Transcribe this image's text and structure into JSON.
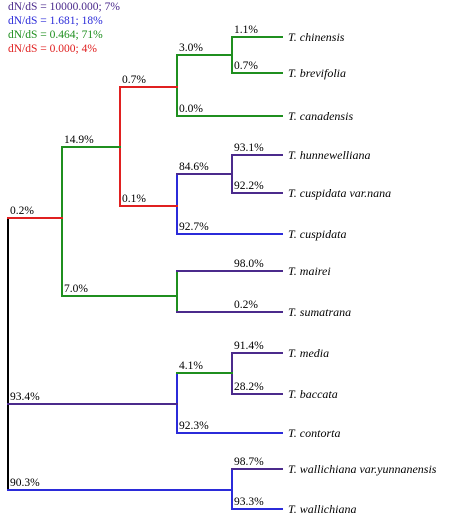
{
  "legend": [
    {
      "text": "dN/dS = 10000.000;   7%",
      "color": "#4b2a8c"
    },
    {
      "text": "dN/dS = 1.681;  18%",
      "color": "#2b2bd9"
    },
    {
      "text": "dN/dS = 0.464;  71%",
      "color": "#1f8f1f"
    },
    {
      "text": "dN/dS = 0.000;   4%",
      "color": "#e02020"
    }
  ],
  "colors": {
    "purple": "#4b2a8c",
    "blue": "#2b2bd9",
    "green": "#1f8f1f",
    "red": "#e02020",
    "black": "#000000"
  },
  "taxa": [
    {
      "id": "chinensis",
      "name": "T. chinensis"
    },
    {
      "id": "brevifolia",
      "name": "T. brevifolia"
    },
    {
      "id": "canadensis",
      "name": "T. canadensis"
    },
    {
      "id": "hunnewelliana",
      "name": "T. hunnewelliana"
    },
    {
      "id": "cuspidata_nana",
      "name": "T. cuspidata var.nana"
    },
    {
      "id": "cuspidata",
      "name": "T. cuspidata"
    },
    {
      "id": "mairei",
      "name": "T. mairei"
    },
    {
      "id": "sumatrana",
      "name": "T. sumatrana"
    },
    {
      "id": "media",
      "name": "T. media"
    },
    {
      "id": "baccata",
      "name": "T. baccata"
    },
    {
      "id": "contorta",
      "name": "T. contorta"
    },
    {
      "id": "wallichiana_yunnanensis",
      "name": "T. wallichiana var.yunnanensis"
    },
    {
      "id": "wallichiana",
      "name": "T. wallichiana"
    }
  ],
  "branch_labels": [
    {
      "id": "root_upper",
      "text": "0.2%"
    },
    {
      "id": "root_mid",
      "text": "93.4%"
    },
    {
      "id": "root_lower",
      "text": "90.3%"
    },
    {
      "id": "n1",
      "text": "14.9%"
    },
    {
      "id": "n2",
      "text": "7.0%"
    },
    {
      "id": "n3",
      "text": "0.7%"
    },
    {
      "id": "n4",
      "text": "0.1%"
    },
    {
      "id": "n5",
      "text": "3.0%"
    },
    {
      "id": "canadensis",
      "text": "0.0%"
    },
    {
      "id": "chinensis",
      "text": "1.1%"
    },
    {
      "id": "brevifolia",
      "text": "0.7%"
    },
    {
      "id": "n6",
      "text": "84.6%"
    },
    {
      "id": "cuspidata",
      "text": "92.7%"
    },
    {
      "id": "hunnewelliana",
      "text": "93.1%"
    },
    {
      "id": "cuspidata_nana",
      "text": "92.2%"
    },
    {
      "id": "mairei",
      "text": "98.0%"
    },
    {
      "id": "sumatrana",
      "text": "0.2%"
    },
    {
      "id": "n7",
      "text": "4.1%"
    },
    {
      "id": "contorta",
      "text": "92.3%"
    },
    {
      "id": "media",
      "text": "91.4%"
    },
    {
      "id": "baccata",
      "text": "28.2%"
    },
    {
      "id": "wallichiana_yunnanensis",
      "text": "98.7%"
    },
    {
      "id": "wallichiana",
      "text": "93.3%"
    }
  ]
}
